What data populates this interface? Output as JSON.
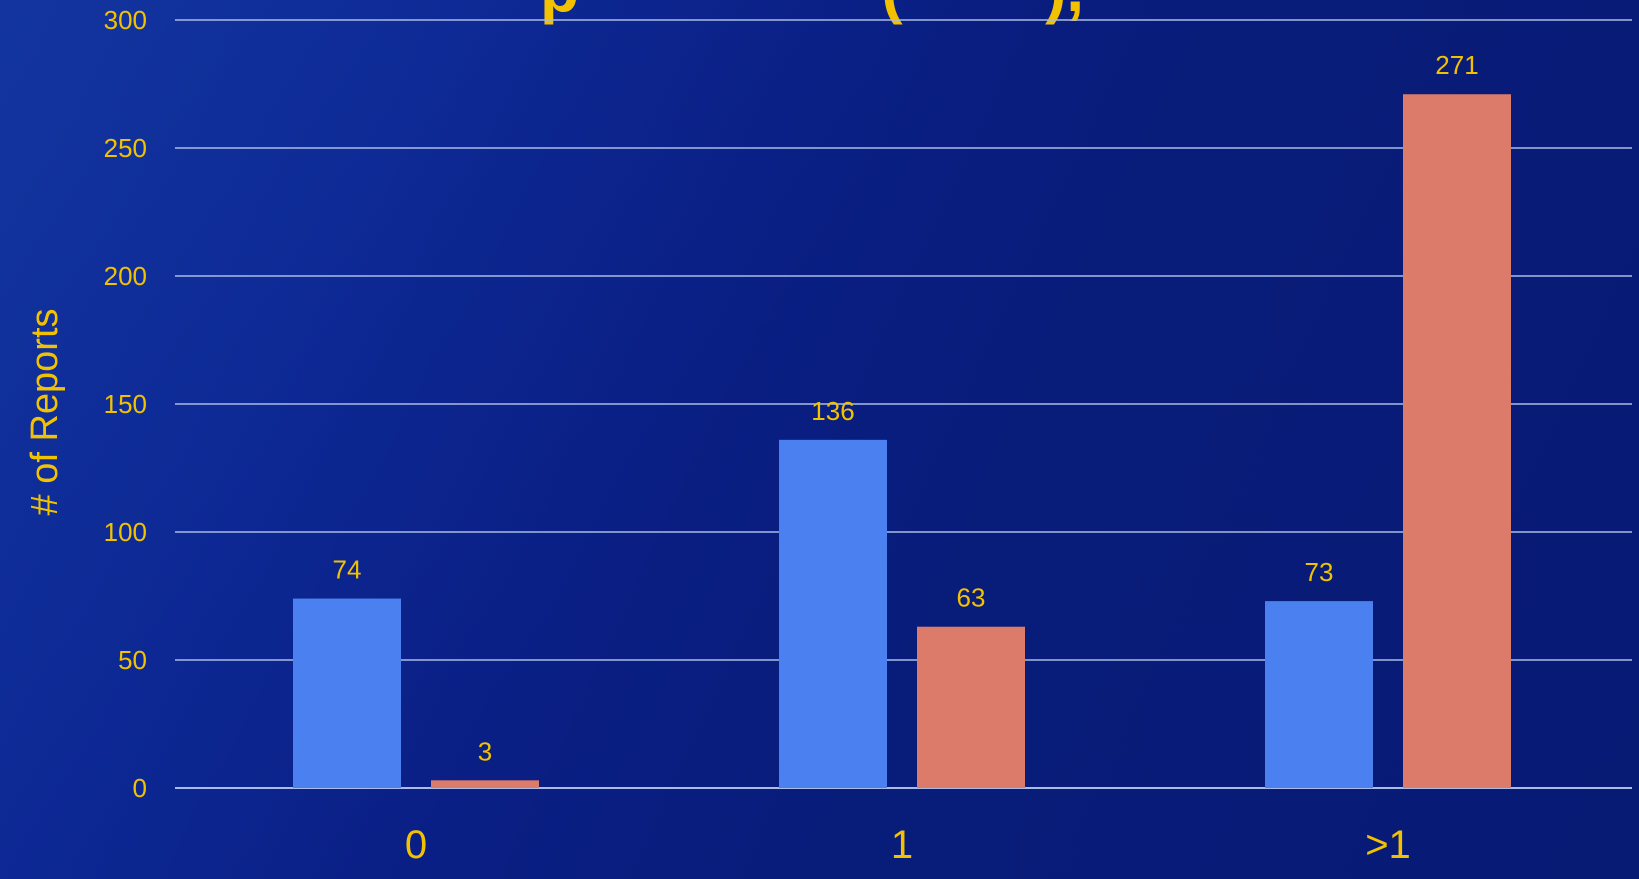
{
  "slide": {
    "title_fragment": "p                 (        ),"
  },
  "chart_data": {
    "type": "bar",
    "title": "",
    "xlabel": "",
    "ylabel": "# of Reports",
    "ylim": [
      0,
      300
    ],
    "yticks": [
      0,
      50,
      100,
      150,
      200,
      250,
      300
    ],
    "grid": true,
    "categories": [
      "0",
      "1",
      ">1"
    ],
    "series": [
      {
        "color": "#4a80f0",
        "values": [
          74,
          136,
          73
        ]
      },
      {
        "color": "#dc7b69",
        "values": [
          3,
          63,
          271
        ]
      }
    ]
  },
  "colors": {
    "background": "#0a1f85",
    "text": "#f2c200",
    "gridline": "#aabbe6"
  }
}
